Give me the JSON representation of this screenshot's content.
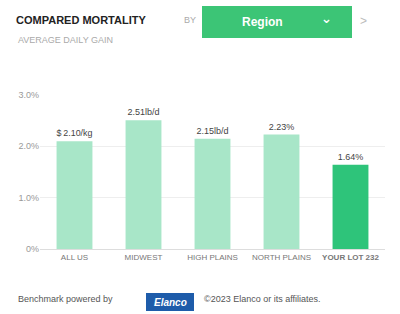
{
  "chart_data": {
    "type": "bar",
    "title": "COMPARED MORTALITY",
    "subtitle": "AVERAGE DAILY GAIN",
    "categories": [
      "ALL US",
      "MIDWEST",
      "HIGH PLAINS",
      "NORTH PLAINS",
      "YOUR LOT 232"
    ],
    "values": [
      2.1,
      2.51,
      2.15,
      2.23,
      1.64
    ],
    "value_labels": [
      "$ 2.10/kg",
      "2.51lb/d",
      "2.15lb/d",
      "2.23%",
      "1.64%"
    ],
    "data_labels": true,
    "colors": [
      "#a8e6c8",
      "#a8e6c8",
      "#a8e6c8",
      "#a8e6c8",
      "#2ec47a"
    ],
    "ylim": [
      0,
      3.0
    ],
    "yticks": [
      {
        "value": 0,
        "label": "0%"
      },
      {
        "value": 1.0,
        "label": "1.0%"
      },
      {
        "value": 2.0,
        "label": "2.0%"
      },
      {
        "value": 3.0,
        "label": "3.0%"
      }
    ],
    "grid": true,
    "annotations": [
      "BY",
      "Region",
      "⌄",
      ">",
      "Benchmark powered by",
      "Elanco",
      "©2023 Elanco or its affiliates."
    ]
  }
}
